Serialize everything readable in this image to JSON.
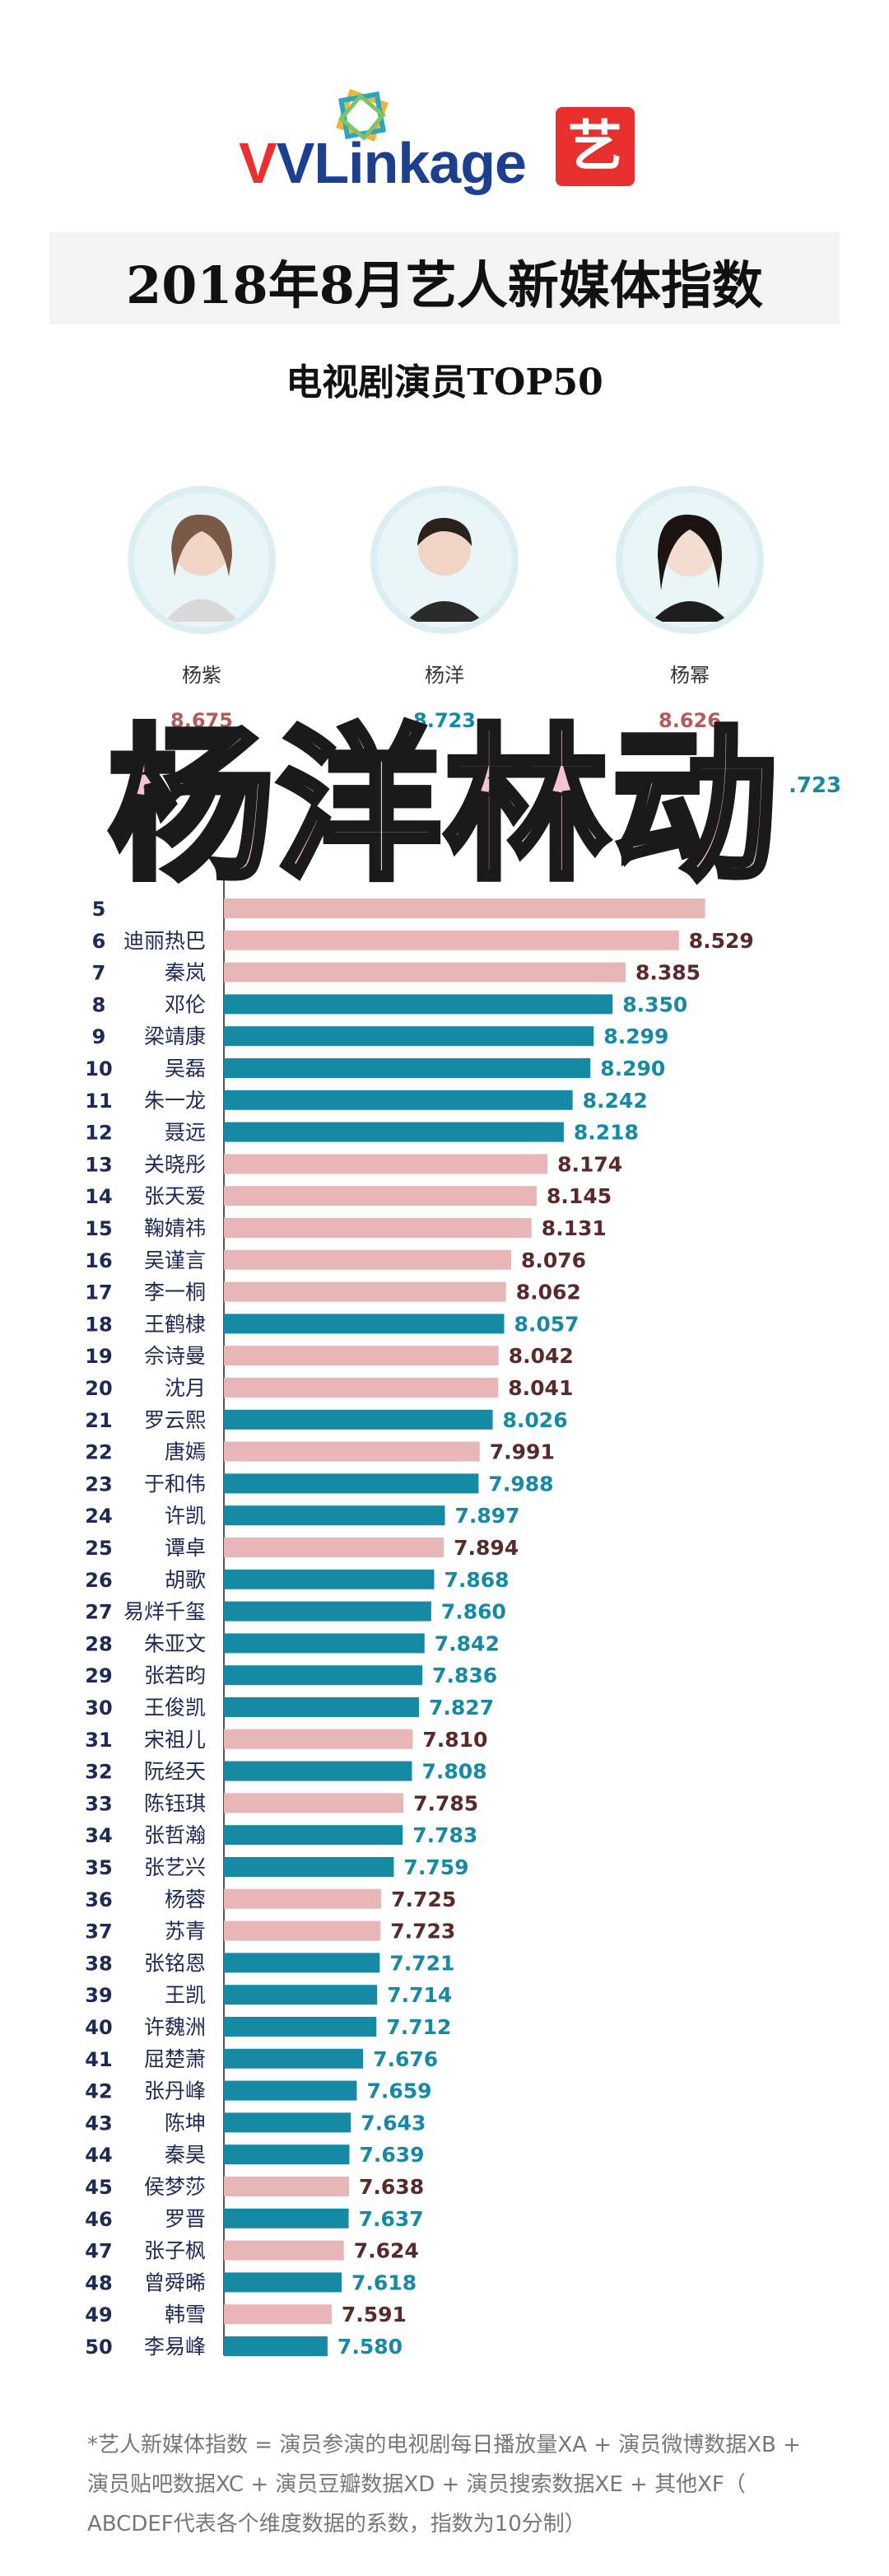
{
  "header": {
    "logo_text": "VLinkage",
    "logo_badge": "艺",
    "title": "2018年8月艺人新媒体指数",
    "subtitle": "电视剧演员TOP50"
  },
  "overlay_text": "杨洋林动",
  "footnote": {
    "line1": "*艺人新媒体指数 = 演员参演的电视剧每日播放量XA + 演员微博数据XB +",
    "line2": "演员贴吧数据XC + 演员豆瓣数据XD + 演员搜索数据XE + 其他XF（",
    "line3": "ABCDEF代表各个维度数据的系数，指数为10分制）"
  },
  "colors": {
    "male": "#168aa5",
    "female": "#e8b6b6",
    "male_value": "#168aa5",
    "female_value": "#5a2a2a"
  },
  "chart_data": {
    "type": "bar",
    "orientation": "horizontal",
    "title": "电视剧演员TOP50",
    "top3": [
      {
        "name": "杨紫",
        "value": "8.675",
        "gender": "female"
      },
      {
        "name": "杨洋",
        "value": "8.723",
        "gender": "male"
      },
      {
        "name": "杨幂",
        "value": "8.626",
        "gender": "female"
      }
    ],
    "partially_visible_value": ".723",
    "rows": [
      {
        "rank": "5",
        "name": "",
        "value": "",
        "gender": "female"
      },
      {
        "rank": "6",
        "name": "迪丽热巴",
        "value": "8.529",
        "gender": "female"
      },
      {
        "rank": "7",
        "name": "秦岚",
        "value": "8.385",
        "gender": "female"
      },
      {
        "rank": "8",
        "name": "邓伦",
        "value": "8.350",
        "gender": "male"
      },
      {
        "rank": "9",
        "name": "梁靖康",
        "value": "8.299",
        "gender": "male"
      },
      {
        "rank": "10",
        "name": "吴磊",
        "value": "8.290",
        "gender": "male"
      },
      {
        "rank": "11",
        "name": "朱一龙",
        "value": "8.242",
        "gender": "male"
      },
      {
        "rank": "12",
        "name": "聂远",
        "value": "8.218",
        "gender": "male"
      },
      {
        "rank": "13",
        "name": "关晓彤",
        "value": "8.174",
        "gender": "female"
      },
      {
        "rank": "14",
        "name": "张天爱",
        "value": "8.145",
        "gender": "female"
      },
      {
        "rank": "15",
        "name": "鞠婧祎",
        "value": "8.131",
        "gender": "female"
      },
      {
        "rank": "16",
        "name": "吴谨言",
        "value": "8.076",
        "gender": "female"
      },
      {
        "rank": "17",
        "name": "李一桐",
        "value": "8.062",
        "gender": "female"
      },
      {
        "rank": "18",
        "name": "王鹤棣",
        "value": "8.057",
        "gender": "male"
      },
      {
        "rank": "19",
        "name": "佘诗曼",
        "value": "8.042",
        "gender": "female"
      },
      {
        "rank": "20",
        "name": "沈月",
        "value": "8.041",
        "gender": "female"
      },
      {
        "rank": "21",
        "name": "罗云熙",
        "value": "8.026",
        "gender": "male"
      },
      {
        "rank": "22",
        "name": "唐嫣",
        "value": "7.991",
        "gender": "female"
      },
      {
        "rank": "23",
        "name": "于和伟",
        "value": "7.988",
        "gender": "male"
      },
      {
        "rank": "24",
        "name": "许凯",
        "value": "7.897",
        "gender": "male"
      },
      {
        "rank": "25",
        "name": "谭卓",
        "value": "7.894",
        "gender": "female"
      },
      {
        "rank": "26",
        "name": "胡歌",
        "value": "7.868",
        "gender": "male"
      },
      {
        "rank": "27",
        "name": "易烊千玺",
        "value": "7.860",
        "gender": "male"
      },
      {
        "rank": "28",
        "name": "朱亚文",
        "value": "7.842",
        "gender": "male"
      },
      {
        "rank": "29",
        "name": "张若昀",
        "value": "7.836",
        "gender": "male"
      },
      {
        "rank": "30",
        "name": "王俊凯",
        "value": "7.827",
        "gender": "male"
      },
      {
        "rank": "31",
        "name": "宋祖儿",
        "value": "7.810",
        "gender": "female"
      },
      {
        "rank": "32",
        "name": "阮经天",
        "value": "7.808",
        "gender": "male"
      },
      {
        "rank": "33",
        "name": "陈钰琪",
        "value": "7.785",
        "gender": "female"
      },
      {
        "rank": "34",
        "name": "张哲瀚",
        "value": "7.783",
        "gender": "male"
      },
      {
        "rank": "35",
        "name": "张艺兴",
        "value": "7.759",
        "gender": "male"
      },
      {
        "rank": "36",
        "name": "杨蓉",
        "value": "7.725",
        "gender": "female"
      },
      {
        "rank": "37",
        "name": "苏青",
        "value": "7.723",
        "gender": "female"
      },
      {
        "rank": "38",
        "name": "张铭恩",
        "value": "7.721",
        "gender": "male"
      },
      {
        "rank": "39",
        "name": "王凯",
        "value": "7.714",
        "gender": "male"
      },
      {
        "rank": "40",
        "name": "许魏洲",
        "value": "7.712",
        "gender": "male"
      },
      {
        "rank": "41",
        "name": "屈楚萧",
        "value": "7.676",
        "gender": "male"
      },
      {
        "rank": "42",
        "name": "张丹峰",
        "value": "7.659",
        "gender": "male"
      },
      {
        "rank": "43",
        "name": "陈坤",
        "value": "7.643",
        "gender": "male"
      },
      {
        "rank": "44",
        "name": "秦昊",
        "value": "7.639",
        "gender": "male"
      },
      {
        "rank": "45",
        "name": "侯梦莎",
        "value": "7.638",
        "gender": "female"
      },
      {
        "rank": "46",
        "name": "罗晋",
        "value": "7.637",
        "gender": "male"
      },
      {
        "rank": "47",
        "name": "张子枫",
        "value": "7.624",
        "gender": "female"
      },
      {
        "rank": "48",
        "name": "曾舜晞",
        "value": "7.618",
        "gender": "male"
      },
      {
        "rank": "49",
        "name": "韩雪",
        "value": "7.591",
        "gender": "female"
      },
      {
        "rank": "50",
        "name": "李易峰",
        "value": "7.580",
        "gender": "male"
      }
    ]
  }
}
